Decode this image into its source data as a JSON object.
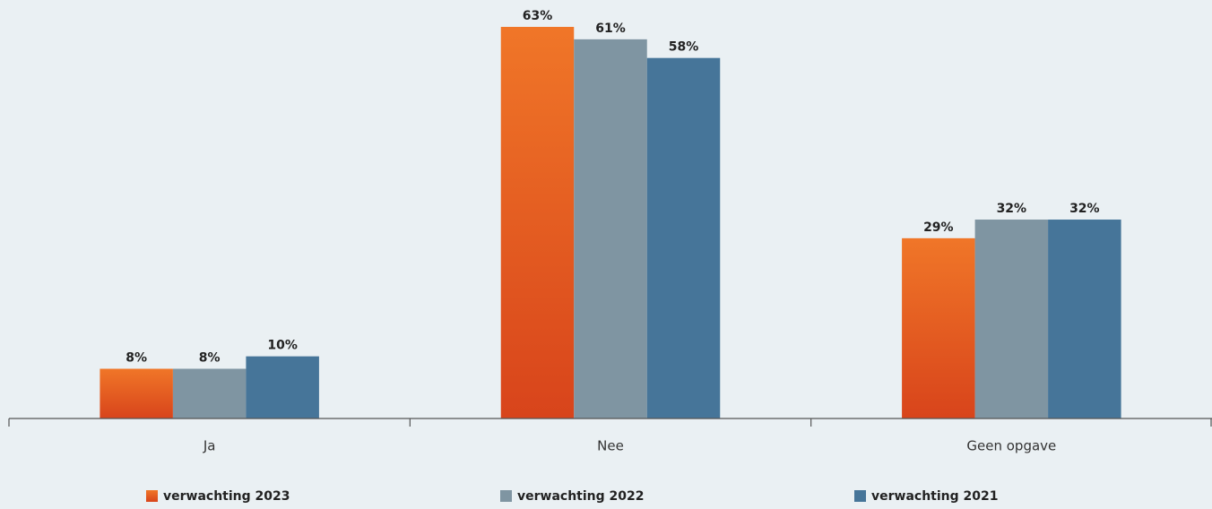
{
  "chart_data": {
    "type": "bar",
    "categories": [
      "Ja",
      "Nee",
      "Geen opgave"
    ],
    "series": [
      {
        "name": "verwachting 2023",
        "color": "#e55a22",
        "values": [
          8,
          63,
          29
        ],
        "value_labels": [
          "8%",
          "63%",
          "29%"
        ]
      },
      {
        "name": "verwachting 2022",
        "color": "#7f95a2",
        "values": [
          8,
          61,
          32
        ],
        "value_labels": [
          "8%",
          "61%",
          "32%"
        ]
      },
      {
        "name": "verwachting 2021",
        "color": "#467599",
        "values": [
          10,
          58,
          32
        ],
        "value_labels": [
          "10%",
          "58%",
          "32%"
        ]
      }
    ]
  }
}
